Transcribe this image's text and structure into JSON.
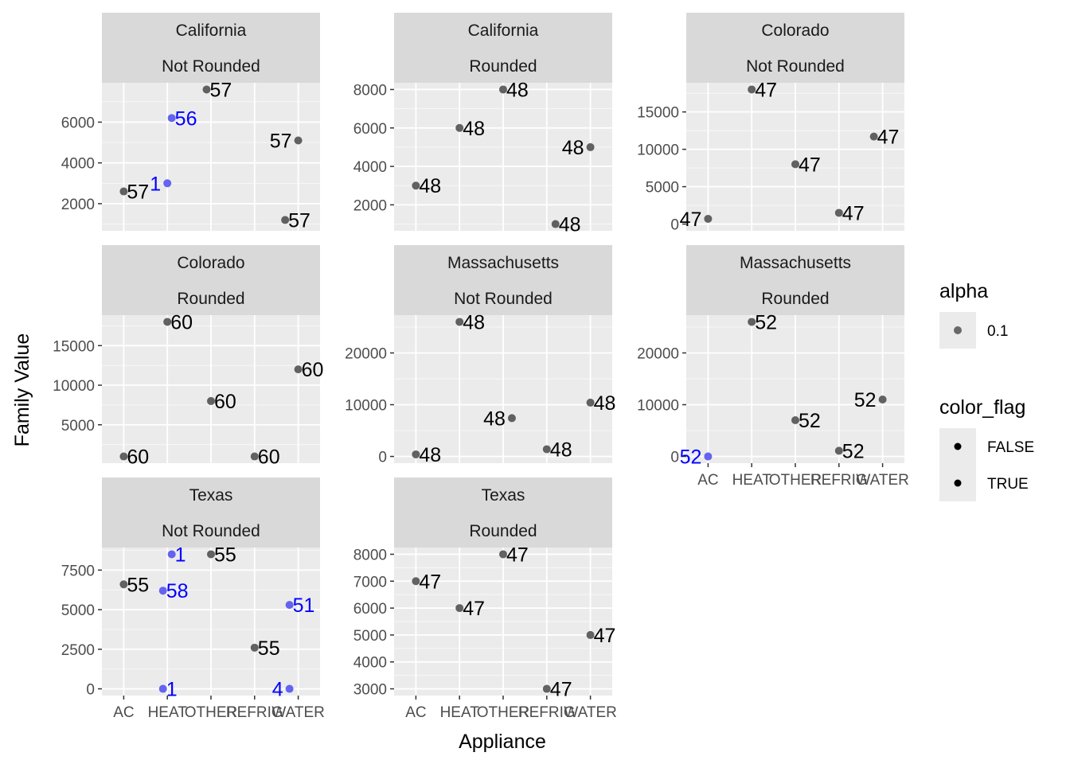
{
  "chart_data": {
    "type": "scatter",
    "xlabel": "Appliance",
    "ylabel": "Family Value",
    "categories": [
      "AC",
      "HEAT",
      "OTHER",
      "REFRIG",
      "WATER"
    ],
    "legend": {
      "placement": "right",
      "alpha_title": "alpha",
      "alpha_entry": "0.1",
      "color_title": "color_flag",
      "color_entries": [
        "FALSE",
        "TRUE"
      ]
    },
    "colors": {
      "false_point": "#3d3d3d",
      "true_point": "#4b4bf0",
      "false_label": "#000000",
      "true_label": "#0000ff",
      "panel_bg": "#ebebeb",
      "strip_bg": "#d9d9d9",
      "grid": "#ffffff"
    },
    "panels": [
      {
        "title": "California",
        "subtitle": "Not Rounded",
        "ylim": [
          1000,
          7600
        ],
        "yticks": [
          2000,
          4000,
          6000
        ],
        "show_x_ticks": false,
        "points": [
          {
            "x": 1.0,
            "y": 2600,
            "label": "57",
            "flag": false
          },
          {
            "x": 2.0,
            "y": 3000,
            "label": "1",
            "flag": true,
            "label_side": "left"
          },
          {
            "x": 2.1,
            "y": 6200,
            "label": "56",
            "flag": true
          },
          {
            "x": 2.9,
            "y": 7600,
            "label": "57",
            "flag": false
          },
          {
            "x": 4.7,
            "y": 1200,
            "label": "57",
            "flag": false
          },
          {
            "x": 5.0,
            "y": 5100,
            "label": "57",
            "flag": false,
            "label_side": "left"
          }
        ]
      },
      {
        "title": "California",
        "subtitle": "Rounded",
        "ylim": [
          1000,
          8000
        ],
        "yticks": [
          2000,
          4000,
          6000,
          8000
        ],
        "show_x_ticks": false,
        "points": [
          {
            "x": 1.0,
            "y": 3000,
            "label": "48",
            "flag": false
          },
          {
            "x": 2.0,
            "y": 6000,
            "label": "48",
            "flag": false
          },
          {
            "x": 3.0,
            "y": 8000,
            "label": "48",
            "flag": false
          },
          {
            "x": 4.2,
            "y": 1000,
            "label": "48",
            "flag": false
          },
          {
            "x": 5.0,
            "y": 5000,
            "label": "48",
            "flag": false,
            "label_side": "left"
          }
        ]
      },
      {
        "title": "Colorado",
        "subtitle": "Not Rounded",
        "ylim": [
          0,
          18000
        ],
        "yticks": [
          0,
          5000,
          10000,
          15000
        ],
        "show_x_ticks": false,
        "points": [
          {
            "x": 1.0,
            "y": 700,
            "label": "47",
            "flag": false,
            "label_side": "left"
          },
          {
            "x": 2.0,
            "y": 18000,
            "label": "47",
            "flag": false
          },
          {
            "x": 3.0,
            "y": 8000,
            "label": "47",
            "flag": false
          },
          {
            "x": 4.0,
            "y": 1500,
            "label": "47",
            "flag": false
          },
          {
            "x": 4.8,
            "y": 11700,
            "label": "47",
            "flag": false
          }
        ]
      },
      {
        "title": "Colorado",
        "subtitle": "Rounded",
        "ylim": [
          1000,
          18000
        ],
        "yticks": [
          5000,
          10000,
          15000
        ],
        "show_x_ticks": false,
        "points": [
          {
            "x": 1.0,
            "y": 1000,
            "label": "60",
            "flag": false
          },
          {
            "x": 2.0,
            "y": 18000,
            "label": "60",
            "flag": false
          },
          {
            "x": 3.0,
            "y": 8000,
            "label": "60",
            "flag": false
          },
          {
            "x": 4.0,
            "y": 1000,
            "label": "60",
            "flag": false
          },
          {
            "x": 5.0,
            "y": 12000,
            "label": "60",
            "flag": false
          }
        ]
      },
      {
        "title": "Massachusetts",
        "subtitle": "Not Rounded",
        "ylim": [
          0,
          26000
        ],
        "yticks": [
          0,
          10000,
          20000
        ],
        "show_x_ticks": false,
        "points": [
          {
            "x": 1.0,
            "y": 400,
            "label": "48",
            "flag": false
          },
          {
            "x": 2.0,
            "y": 26000,
            "label": "48",
            "flag": false
          },
          {
            "x": 3.2,
            "y": 7400,
            "label": "48",
            "flag": false,
            "label_side": "left"
          },
          {
            "x": 4.0,
            "y": 1400,
            "label": "48",
            "flag": false
          },
          {
            "x": 5.0,
            "y": 10400,
            "label": "48",
            "flag": false
          }
        ]
      },
      {
        "title": "Massachusetts",
        "subtitle": "Rounded",
        "ylim": [
          0,
          26000
        ],
        "yticks": [
          0,
          10000,
          20000
        ],
        "show_x_ticks": true,
        "points": [
          {
            "x": 1.0,
            "y": 0,
            "label": "52",
            "flag": true,
            "label_side": "left"
          },
          {
            "x": 2.0,
            "y": 26000,
            "label": "52",
            "flag": false
          },
          {
            "x": 3.0,
            "y": 7000,
            "label": "52",
            "flag": false
          },
          {
            "x": 4.0,
            "y": 1100,
            "label": "52",
            "flag": false
          },
          {
            "x": 5.0,
            "y": 11000,
            "label": "52",
            "flag": false,
            "label_side": "left"
          }
        ]
      },
      {
        "title": "Texas",
        "subtitle": "Not Rounded",
        "ylim": [
          0,
          8500
        ],
        "yticks": [
          0,
          2500,
          5000,
          7500
        ],
        "show_x_ticks": true,
        "points": [
          {
            "x": 1.0,
            "y": 6600,
            "label": "55",
            "flag": false
          },
          {
            "x": 1.9,
            "y": 0,
            "label": "1",
            "flag": true
          },
          {
            "x": 1.9,
            "y": 6200,
            "label": "58",
            "flag": true
          },
          {
            "x": 2.1,
            "y": 8500,
            "label": "1",
            "flag": true
          },
          {
            "x": 3.0,
            "y": 8500,
            "label": "55",
            "flag": false
          },
          {
            "x": 4.0,
            "y": 2600,
            "label": "55",
            "flag": false
          },
          {
            "x": 4.8,
            "y": 0,
            "label": "4",
            "flag": true,
            "label_side": "left"
          },
          {
            "x": 4.8,
            "y": 5300,
            "label": "51",
            "flag": true
          }
        ]
      },
      {
        "title": "Texas",
        "subtitle": "Rounded",
        "ylim": [
          3000,
          8000
        ],
        "yticks": [
          3000,
          4000,
          5000,
          6000,
          7000,
          8000
        ],
        "show_x_ticks": true,
        "points": [
          {
            "x": 1.0,
            "y": 7000,
            "label": "47",
            "flag": false
          },
          {
            "x": 2.0,
            "y": 6000,
            "label": "47",
            "flag": false
          },
          {
            "x": 3.0,
            "y": 8000,
            "label": "47",
            "flag": false
          },
          {
            "x": 4.0,
            "y": 3000,
            "label": "47",
            "flag": false
          },
          {
            "x": 5.0,
            "y": 5000,
            "label": "47",
            "flag": false
          }
        ]
      }
    ]
  }
}
